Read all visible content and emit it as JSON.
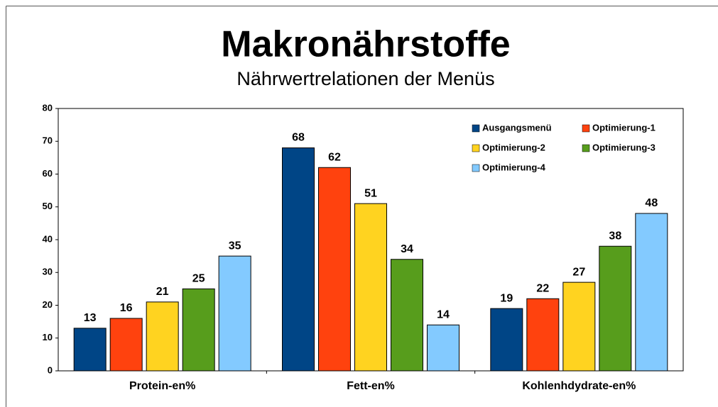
{
  "chart_data": {
    "type": "bar",
    "title": "Makronährstoffe",
    "subtitle": "Nährwertrelationen der Menüs",
    "categories": [
      "Protein-en%",
      "Fett-en%",
      "Kohlenhdydrate-en%"
    ],
    "series": [
      {
        "name": "Ausgangsmenü",
        "color": "#004586",
        "values": [
          13,
          68,
          19
        ]
      },
      {
        "name": "Optimierung-1",
        "color": "#ff420e",
        "values": [
          16,
          62,
          22
        ]
      },
      {
        "name": "Optimierung-2",
        "color": "#ffd320",
        "values": [
          21,
          51,
          27
        ]
      },
      {
        "name": "Optimierung-3",
        "color": "#579d1c",
        "values": [
          25,
          34,
          38
        ]
      },
      {
        "name": "Optimierung-4",
        "color": "#83caff",
        "values": [
          35,
          14,
          48
        ]
      }
    ],
    "ylim": [
      0,
      80
    ],
    "yticks": [
      0,
      10,
      20,
      30,
      40,
      50,
      60,
      70,
      80
    ],
    "legend": "upper right"
  }
}
